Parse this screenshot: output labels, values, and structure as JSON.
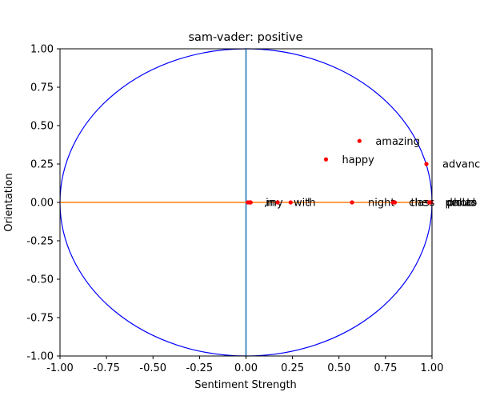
{
  "chart_data": {
    "type": "scatter",
    "title": "sam-vader: positive",
    "xlabel": "Sentiment Strength",
    "ylabel": "Orientation",
    "xlim": [
      -1.0,
      1.0
    ],
    "ylim": [
      -1.0,
      1.0
    ],
    "x_ticks": [
      "-1.00",
      "-0.75",
      "-0.50",
      "-0.25",
      "0.00",
      "0.25",
      "0.50",
      "0.75",
      "1.00"
    ],
    "y_ticks": [
      "1.00",
      "0.75",
      "0.50",
      "0.25",
      "0.00",
      "-0.25",
      "-0.50",
      "-0.75",
      "-1.00"
    ],
    "x_tick_values": [
      -1.0,
      -0.75,
      -0.5,
      -0.25,
      0.0,
      0.25,
      0.5,
      0.75,
      1.0
    ],
    "y_tick_values": [
      1.0,
      0.75,
      0.5,
      0.25,
      0.0,
      -0.25,
      -0.5,
      -0.75,
      -1.0
    ],
    "grid": false,
    "unit_circle": true,
    "circle_color": "#0000ff",
    "vertical_line_color": "#1f77b4",
    "horizontal_line_color": "#ff7f0e",
    "point_color": "#ff0000",
    "points": [
      {
        "label": "amazing",
        "x": 0.61,
        "y": 0.4
      },
      {
        "label": "happy",
        "x": 0.43,
        "y": 0.28
      },
      {
        "label": "advanc",
        "x": 0.97,
        "y": 0.25
      },
      {
        "label": ",",
        "x": 0.01,
        "y": 0.0
      },
      {
        "label": "my",
        "x": 0.025,
        "y": 0.0
      },
      {
        "label": "in",
        "x": 0.02,
        "y": 0.0
      },
      {
        "label": "!",
        "x": 0.24,
        "y": 0.0
      },
      {
        "label": "with",
        "x": 0.17,
        "y": 0.0
      },
      {
        "label": "night",
        "x": 0.57,
        "y": 0.0
      },
      {
        "label": "the",
        "x": 0.8,
        "y": 0.0
      },
      {
        "label": "class",
        "x": 0.79,
        "y": 0.0
      },
      {
        "label": "dallas",
        "x": 0.99,
        "y": 0.0
      },
      {
        "label": "proud",
        "x": 0.985,
        "y": 0.0
      },
      {
        "label": "photo",
        "x": 0.995,
        "y": 0.0
      }
    ]
  }
}
